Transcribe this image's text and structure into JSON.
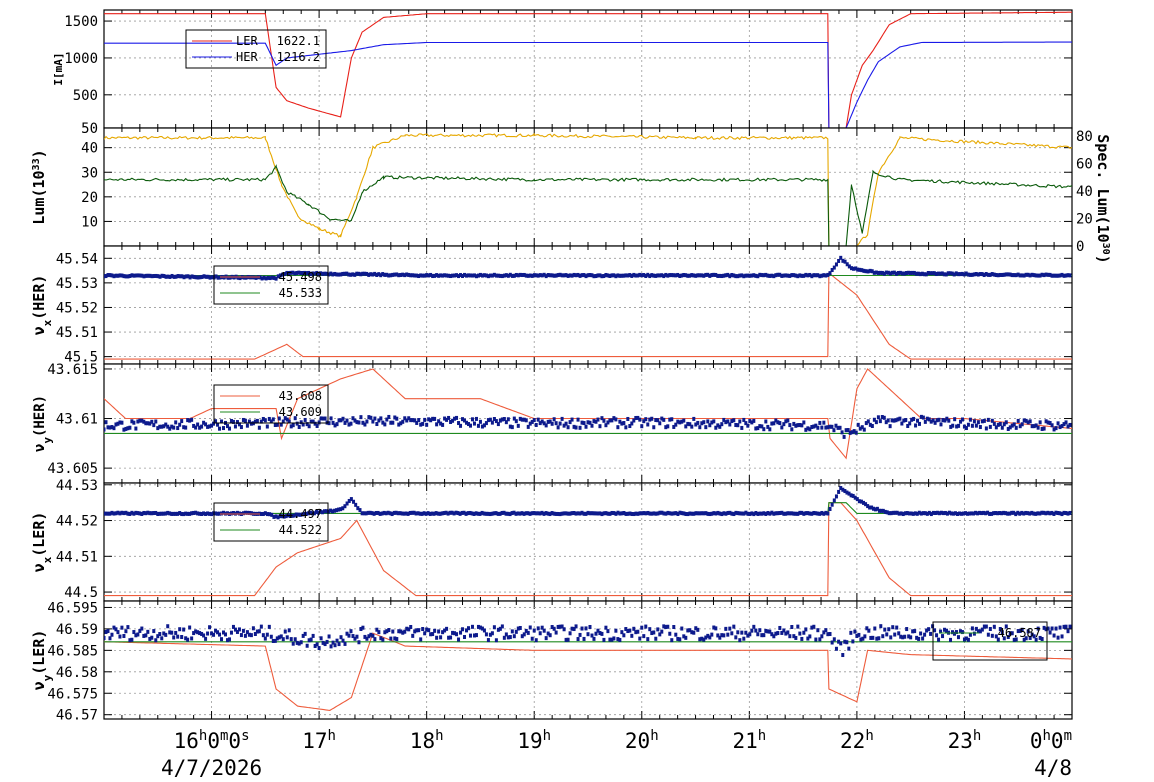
{
  "colors": {
    "ler": "#e8211a",
    "her": "#1a1ae8",
    "lum_spec": "#e6a800",
    "lum": "#0a5a0a",
    "meas": "#0d1a8c",
    "set": "#ee5c3c",
    "ref": "#1f8a1f",
    "grid": "#9a9a9a"
  },
  "time_axis": {
    "start_hour": 15.0,
    "end_hour": 24.0,
    "ticks": [
      {
        "hour": 16,
        "label": "16h0m0s"
      },
      {
        "hour": 17,
        "label": "17h"
      },
      {
        "hour": 18,
        "label": "18h"
      },
      {
        "hour": 19,
        "label": "19h"
      },
      {
        "hour": 20,
        "label": "20h"
      },
      {
        "hour": 21,
        "label": "21h"
      },
      {
        "hour": 22,
        "label": "22h"
      },
      {
        "hour": 23,
        "label": "23h"
      },
      {
        "hour": 24,
        "label": "0h0m"
      }
    ],
    "date_labels": [
      {
        "hour": 16,
        "label": "4/7/2026"
      },
      {
        "hour": 24,
        "label": "4/8"
      }
    ]
  },
  "chart_data": [
    {
      "type": "line",
      "panel": "current",
      "ylabel": "I[mA]",
      "ylim": [
        50,
        1650
      ],
      "yticks": [
        50,
        500,
        1000,
        1500
      ],
      "grid": true,
      "legend_placement": "top-left",
      "series": [
        {
          "name": "LER",
          "legend_value": "1622.1",
          "color_key": "ler",
          "points": [
            [
              15.0,
              1600
            ],
            [
              16.5,
              1600
            ],
            [
              16.6,
              600
            ],
            [
              16.7,
              420
            ],
            [
              16.9,
              320
            ],
            [
              17.05,
              260
            ],
            [
              17.2,
              200
            ],
            [
              17.3,
              1000
            ],
            [
              17.4,
              1350
            ],
            [
              17.6,
              1550
            ],
            [
              18.0,
              1600
            ],
            [
              21.73,
              1600
            ],
            [
              21.74,
              50
            ],
            [
              21.9,
              50
            ],
            [
              21.95,
              500
            ],
            [
              22.05,
              900
            ],
            [
              22.15,
              1100
            ],
            [
              22.3,
              1450
            ],
            [
              22.5,
              1600
            ],
            [
              24.0,
              1620
            ]
          ]
        },
        {
          "name": "HER",
          "legend_value": "1216.2",
          "color_key": "her",
          "points": [
            [
              15.0,
              1200
            ],
            [
              16.5,
              1200
            ],
            [
              16.6,
              900
            ],
            [
              16.7,
              1000
            ],
            [
              17.0,
              1050
            ],
            [
              17.3,
              1100
            ],
            [
              17.6,
              1180
            ],
            [
              18.0,
              1210
            ],
            [
              21.73,
              1210
            ],
            [
              21.74,
              50
            ],
            [
              21.9,
              50
            ],
            [
              22.0,
              400
            ],
            [
              22.1,
              700
            ],
            [
              22.2,
              950
            ],
            [
              22.4,
              1150
            ],
            [
              22.6,
              1210
            ],
            [
              24.0,
              1215
            ]
          ]
        }
      ]
    },
    {
      "type": "line",
      "panel": "luminosity",
      "ylabel": "Lum(10^33)",
      "y2label": "Spec. Lum(10^30)",
      "ylim": [
        0,
        48
      ],
      "yticks": [
        10,
        20,
        30,
        40
      ],
      "y2lim": [
        0,
        86
      ],
      "y2ticks": [
        0,
        20,
        40,
        60,
        80
      ],
      "grid": true,
      "series": [
        {
          "name": "",
          "color_key": "lum_spec",
          "points": [
            [
              15.0,
              44
            ],
            [
              16.5,
              44
            ],
            [
              16.65,
              25
            ],
            [
              16.8,
              12
            ],
            [
              17.0,
              7
            ],
            [
              17.2,
              4
            ],
            [
              17.35,
              20
            ],
            [
              17.5,
              40
            ],
            [
              17.8,
              45
            ],
            [
              19.0,
              45
            ],
            [
              20.5,
              44
            ],
            [
              21.73,
              44
            ],
            [
              21.74,
              0
            ],
            [
              22.0,
              0
            ],
            [
              22.1,
              5
            ],
            [
              22.2,
              30
            ],
            [
              22.4,
              44
            ],
            [
              24.0,
              40
            ]
          ]
        },
        {
          "name": "",
          "color_key": "lum",
          "points": [
            [
              15.0,
              27
            ],
            [
              16.5,
              27
            ],
            [
              16.6,
              32
            ],
            [
              16.7,
              22
            ],
            [
              16.9,
              17
            ],
            [
              17.1,
              11
            ],
            [
              17.3,
              10
            ],
            [
              17.4,
              22
            ],
            [
              17.6,
              28
            ],
            [
              19.0,
              27
            ],
            [
              21.73,
              27
            ],
            [
              21.74,
              0
            ],
            [
              21.9,
              0
            ],
            [
              21.95,
              25
            ],
            [
              22.05,
              5
            ],
            [
              22.15,
              30
            ],
            [
              22.4,
              27
            ],
            [
              24.0,
              24
            ]
          ]
        }
      ]
    },
    {
      "type": "line",
      "panel": "nux_her",
      "ylabel": "νx(HER)",
      "ylim": [
        45.497,
        45.545
      ],
      "yticks": [
        45.5,
        45.51,
        45.52,
        45.53,
        45.54
      ],
      "grid": true,
      "legend_placement": "top-left",
      "series": [
        {
          "name": "",
          "legend_value": "45.498",
          "color_key": "set",
          "points": [
            [
              15.0,
              45.499
            ],
            [
              16.4,
              45.499
            ],
            [
              16.5,
              45.501
            ],
            [
              16.7,
              45.505
            ],
            [
              16.85,
              45.5
            ],
            [
              17.5,
              45.5
            ],
            [
              21.73,
              45.5
            ],
            [
              21.74,
              45.534
            ],
            [
              22.0,
              45.525
            ],
            [
              22.3,
              45.505
            ],
            [
              22.5,
              45.499
            ],
            [
              24.0,
              45.499
            ]
          ]
        },
        {
          "name": "",
          "legend_value": "45.533",
          "color_key": "ref",
          "points": [
            [
              15.0,
              45.533
            ],
            [
              24.0,
              45.533
            ]
          ]
        },
        {
          "name": "",
          "color_key": "meas",
          "dots": true,
          "points": [
            [
              15.0,
              45.533
            ],
            [
              16.6,
              45.532
            ],
            [
              16.7,
              45.534
            ],
            [
              18.0,
              45.533
            ],
            [
              20.0,
              45.533
            ],
            [
              21.73,
              45.533
            ],
            [
              21.85,
              45.54
            ],
            [
              21.95,
              45.536
            ],
            [
              22.2,
              45.534
            ],
            [
              24.0,
              45.533
            ]
          ]
        }
      ]
    },
    {
      "type": "line",
      "panel": "nuy_her",
      "ylabel": "νy(HER)",
      "ylim": [
        43.6035,
        43.6155
      ],
      "yticks": [
        43.605,
        43.61,
        43.615
      ],
      "grid": true,
      "legend_placement": "top-left",
      "series": [
        {
          "name": "",
          "legend_value": "43.608",
          "color_key": "set",
          "points": [
            [
              15.0,
              43.612
            ],
            [
              15.2,
              43.61
            ],
            [
              15.8,
              43.61
            ],
            [
              16.0,
              43.611
            ],
            [
              16.6,
              43.611
            ],
            [
              16.65,
              43.608
            ],
            [
              16.8,
              43.612
            ],
            [
              17.0,
              43.613
            ],
            [
              17.2,
              43.614
            ],
            [
              17.5,
              43.615
            ],
            [
              17.8,
              43.612
            ],
            [
              18.5,
              43.612
            ],
            [
              19.0,
              43.61
            ],
            [
              20.0,
              43.61
            ],
            [
              21.73,
              43.61
            ],
            [
              21.75,
              43.608
            ],
            [
              21.9,
              43.606
            ],
            [
              22.0,
              43.613
            ],
            [
              22.1,
              43.615
            ],
            [
              22.3,
              43.613
            ],
            [
              22.6,
              43.61
            ],
            [
              23.0,
              43.61
            ],
            [
              24.0,
              43.609
            ]
          ]
        },
        {
          "name": "",
          "legend_value": "43.609",
          "color_key": "ref",
          "points": [
            [
              15.0,
              43.6085
            ],
            [
              24.0,
              43.6085
            ]
          ]
        },
        {
          "name": "",
          "color_key": "meas",
          "dots": true,
          "points": [
            [
              15.0,
              43.6093
            ],
            [
              16.5,
              43.6095
            ],
            [
              17.0,
              43.6097
            ],
            [
              18.0,
              43.6097
            ],
            [
              19.0,
              43.6095
            ],
            [
              20.0,
              43.6096
            ],
            [
              21.73,
              43.6093
            ],
            [
              21.9,
              43.6085
            ],
            [
              22.2,
              43.6097
            ],
            [
              22.6,
              43.6097
            ],
            [
              23.0,
              43.6095
            ],
            [
              24.0,
              43.6093
            ]
          ]
        }
      ]
    },
    {
      "type": "line",
      "panel": "nux_ler",
      "ylabel": "νx(LER)",
      "ylim": [
        44.4975,
        44.5305
      ],
      "yticks": [
        44.5,
        44.51,
        44.52,
        44.53
      ],
      "grid": true,
      "legend_placement": "top-left",
      "series": [
        {
          "name": "",
          "legend_value": "44.497",
          "color_key": "set",
          "points": [
            [
              15.0,
              44.499
            ],
            [
              16.4,
              44.499
            ],
            [
              16.6,
              44.507
            ],
            [
              16.8,
              44.511
            ],
            [
              17.0,
              44.513
            ],
            [
              17.2,
              44.515
            ],
            [
              17.35,
              44.52
            ],
            [
              17.6,
              44.506
            ],
            [
              17.9,
              44.499
            ],
            [
              21.73,
              44.499
            ],
            [
              21.74,
              44.525
            ],
            [
              21.85,
              44.525
            ],
            [
              22.0,
              44.52
            ],
            [
              22.3,
              44.504
            ],
            [
              22.5,
              44.499
            ],
            [
              24.0,
              44.499
            ]
          ]
        },
        {
          "name": "",
          "legend_value": "44.522",
          "color_key": "ref",
          "points": [
            [
              15.0,
              44.522
            ],
            [
              21.73,
              44.522
            ],
            [
              21.74,
              44.525
            ],
            [
              21.9,
              44.525
            ],
            [
              22.0,
              44.522
            ],
            [
              24.0,
              44.522
            ]
          ]
        },
        {
          "name": "",
          "color_key": "meas",
          "dots": true,
          "points": [
            [
              15.0,
              44.522
            ],
            [
              16.5,
              44.522
            ],
            [
              16.6,
              44.521
            ],
            [
              17.2,
              44.523
            ],
            [
              17.3,
              44.526
            ],
            [
              17.4,
              44.522
            ],
            [
              21.73,
              44.522
            ],
            [
              21.85,
              44.529
            ],
            [
              22.1,
              44.524
            ],
            [
              22.3,
              44.522
            ],
            [
              24.0,
              44.522
            ]
          ]
        }
      ]
    },
    {
      "type": "line",
      "panel": "nuy_ler",
      "ylabel": "νy(LER)",
      "ylim": [
        46.569,
        46.5965
      ],
      "yticks": [
        46.57,
        46.575,
        46.58,
        46.585,
        46.59,
        46.595
      ],
      "grid": true,
      "legend_placement": "bottom-right",
      "series": [
        {
          "name": "",
          "legend_value": "",
          "color_key": "set",
          "points": [
            [
              15.0,
              46.587
            ],
            [
              16.5,
              46.586
            ],
            [
              16.6,
              46.576
            ],
            [
              16.8,
              46.572
            ],
            [
              17.1,
              46.571
            ],
            [
              17.3,
              46.574
            ],
            [
              17.5,
              46.589
            ],
            [
              17.8,
              46.586
            ],
            [
              19.0,
              46.585
            ],
            [
              21.73,
              46.585
            ],
            [
              21.74,
              46.576
            ],
            [
              22.0,
              46.573
            ],
            [
              22.1,
              46.585
            ],
            [
              22.5,
              46.584
            ],
            [
              24.0,
              46.583
            ]
          ]
        },
        {
          "name": "",
          "legend_value": "46.587",
          "color_key": "ref",
          "points": [
            [
              15.0,
              46.587
            ],
            [
              24.0,
              46.587
            ]
          ]
        },
        {
          "name": "",
          "color_key": "meas",
          "dots": true,
          "points": [
            [
              15.0,
              46.589
            ],
            [
              16.5,
              46.589
            ],
            [
              17.0,
              46.587
            ],
            [
              17.5,
              46.589
            ],
            [
              18.0,
              46.589
            ],
            [
              20.0,
              46.589
            ],
            [
              21.73,
              46.589
            ],
            [
              21.85,
              46.585
            ],
            [
              22.0,
              46.589
            ],
            [
              24.0,
              46.589
            ]
          ]
        }
      ]
    }
  ],
  "legends": {
    "current": [
      {
        "label": "LER",
        "value": "1622.1"
      },
      {
        "label": "HER",
        "value": "1216.2"
      }
    ],
    "nux_her": [
      {
        "label": "",
        "value": "45.498"
      },
      {
        "label": "",
        "value": "45.533"
      }
    ],
    "nuy_her": [
      {
        "label": "",
        "value": "43.608"
      },
      {
        "label": "",
        "value": "43.609"
      }
    ],
    "nux_ler": [
      {
        "label": "",
        "value": "44.497"
      },
      {
        "label": "",
        "value": "44.522"
      }
    ],
    "nuy_ler": [
      {
        "label": "",
        "value": "46.587"
      }
    ]
  },
  "labels": {
    "current_ylabel": "I[mA]",
    "lum_ylabel": "Lum(10",
    "lum_ylabel_exp": "33",
    "spec_ylabel": "Spec. Lum(10",
    "spec_ylabel_exp": "30",
    "nux_her_ylabel": "ν",
    "nux_her_sub": "x",
    "nux_her_rest": "(HER)",
    "nuy_her_ylabel": "ν",
    "nuy_her_sub": "y",
    "nuy_her_rest": "(HER)",
    "nux_ler_ylabel": "ν",
    "nux_ler_sub": "x",
    "nux_ler_rest": "(LER)",
    "nuy_ler_ylabel": "ν",
    "nuy_ler_sub": "y",
    "nuy_ler_rest": "(LER)"
  }
}
